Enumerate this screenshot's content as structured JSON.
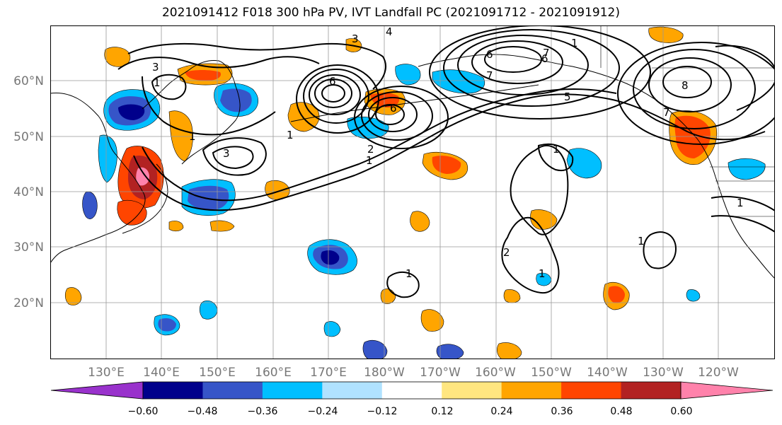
{
  "title": "2021091412 F018 300 hPa PV, IVT Landfall PC (2021091712 - 2021091912)",
  "map": {
    "lat_labels": [
      "60°N",
      "50°N",
      "40°N",
      "30°N",
      "20°N"
    ],
    "lon_labels": [
      "130°E",
      "140°E",
      "150°E",
      "160°E",
      "170°E",
      "180°W",
      "170°W",
      "160°W",
      "150°W",
      "140°W",
      "130°W",
      "120°W"
    ],
    "contour_labels": [
      "3",
      "4",
      "3",
      "1",
      "1",
      "3",
      "6",
      "6",
      "6",
      "7",
      "1",
      "6",
      "7",
      "1",
      "5",
      "2",
      "8",
      "7",
      "1",
      "1",
      "1",
      "2",
      "1",
      "1",
      "1"
    ]
  },
  "colorbar": {
    "colors": [
      "#9932CC",
      "#00008B",
      "#3655C8",
      "#00BFFF",
      "#B0E2FF",
      "#FFFFFF",
      "#FFE680",
      "#FFA500",
      "#FF4500",
      "#B22222",
      "#FF82AB"
    ],
    "tick_labels": [
      "−0.60",
      "−0.48",
      "−0.36",
      "−0.24",
      "−0.12",
      "0.12",
      "0.24",
      "0.36",
      "0.48",
      "0.60"
    ]
  },
  "colors": {
    "coast": "#000000",
    "grid": "#999999",
    "contour": "#000000"
  }
}
